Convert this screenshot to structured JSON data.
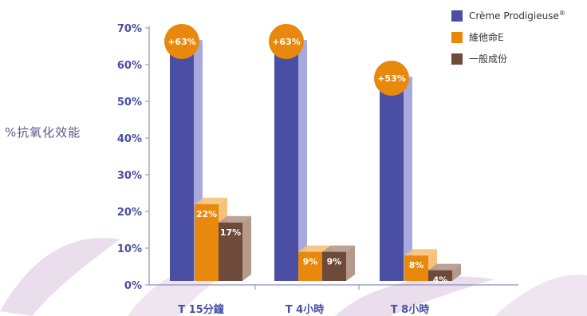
{
  "chart_data": {
    "type": "bar",
    "ylabel": "%抗氧化效能",
    "ylim": [
      0,
      70
    ],
    "yticks": [
      "0%",
      "10%",
      "20%",
      "30%",
      "40%",
      "50%",
      "60%",
      "70%"
    ],
    "categories": [
      "T 15分鐘",
      "T 4小時",
      "T 8小時"
    ],
    "series": [
      {
        "name": "Crème Prodigieuse",
        "values": [
          65,
          65,
          55
        ],
        "labels": [
          "",
          "",
          ""
        ]
      },
      {
        "name": "維他命E",
        "values": [
          22,
          9,
          8
        ],
        "labels": [
          "22%",
          "9%",
          "8%"
        ]
      },
      {
        "name": "一般成份",
        "values": [
          17,
          9,
          4
        ],
        "labels": [
          "17%",
          "9%",
          "4%"
        ]
      }
    ],
    "annotations": [
      "+63%",
      "+63%",
      "+53%"
    ],
    "legend": {
      "position": "top-right",
      "registered_mark": "®"
    },
    "colors": {
      "creme": {
        "front": "#4a4fa3",
        "side": "#a8a9de"
      },
      "vitamin": {
        "front": "#e8890e",
        "side": "#f5c27a"
      },
      "regular": {
        "front": "#6e4a3a",
        "side": "#b49a8a"
      },
      "badge": "#e8890e",
      "axis_text": "#4a4fa3",
      "axis_line": "#8e8ec0"
    }
  }
}
